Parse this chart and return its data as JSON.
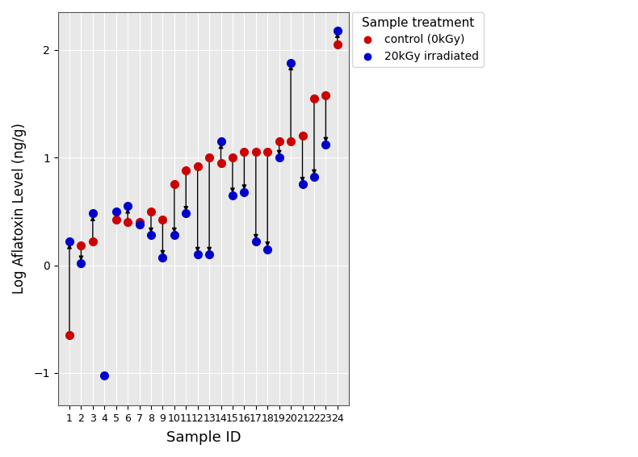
{
  "sample_ids": [
    1,
    2,
    3,
    4,
    5,
    6,
    7,
    8,
    9,
    10,
    11,
    12,
    13,
    14,
    15,
    16,
    17,
    18,
    19,
    20,
    21,
    22,
    23,
    24
  ],
  "control": [
    -0.65,
    0.18,
    0.22,
    null,
    0.42,
    0.4,
    0.4,
    0.5,
    0.42,
    0.75,
    0.88,
    0.92,
    1.0,
    0.95,
    1.0,
    1.05,
    1.05,
    1.05,
    1.15,
    1.15,
    1.2,
    1.55,
    1.58,
    2.05
  ],
  "irradiated": [
    0.22,
    0.02,
    0.48,
    -1.02,
    0.5,
    0.55,
    0.38,
    0.28,
    0.07,
    0.28,
    0.48,
    0.1,
    0.1,
    1.15,
    0.65,
    0.68,
    0.22,
    0.15,
    1.0,
    1.88,
    0.75,
    0.82,
    1.12,
    2.18
  ],
  "title": "",
  "xlabel": "Sample ID",
  "ylabel": "Log Aflatoxin Level (ng/g)",
  "bg_color": "#e8e8e8",
  "control_color": "#cc0000",
  "irradiated_color": "#0000cc",
  "xlim": [
    0,
    25
  ],
  "ylim": [
    -1.3,
    2.35
  ],
  "yticks": [
    -1,
    0,
    1,
    2
  ],
  "xtick_labels": [
    "1",
    "2",
    "3",
    "4",
    "5",
    "6",
    "7",
    "8",
    "9",
    "10",
    "11",
    "12",
    "13",
    "14",
    "15",
    "16",
    "17",
    "18",
    "19",
    "20",
    "21",
    "22",
    "23",
    "24"
  ]
}
